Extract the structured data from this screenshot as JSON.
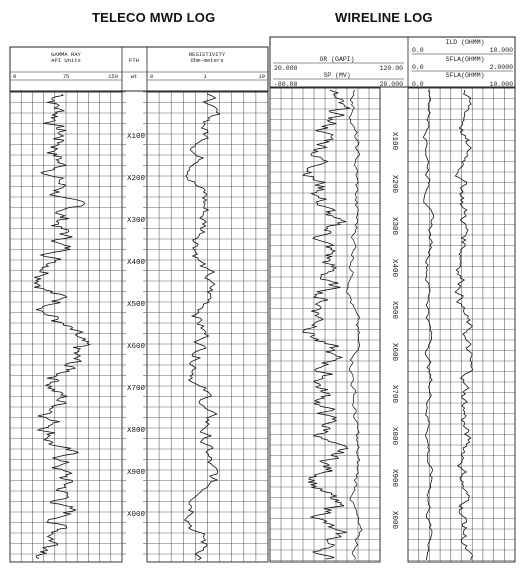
{
  "titles": {
    "teleco": "TELECO MWD LOG",
    "wireline": "WIRELINE LOG"
  },
  "teleco": {
    "gamma_header": "GAMMA RAY",
    "gamma_units": "API Units",
    "gamma_scale": [
      "0",
      "75",
      "150"
    ],
    "depth_header": "FTH",
    "depth_unit": "wt",
    "res_header": "RESISTIVITY",
    "res_units": "Ohm-meters",
    "res_scale": [
      "0",
      "1",
      "10"
    ],
    "depth_labels": [
      "X100",
      "X200",
      "X300",
      "X400",
      "X500",
      "X600",
      "X700",
      "X800",
      "X900",
      "X000"
    ]
  },
  "wireline": {
    "gr_header": "GR (GAPI)",
    "gr_scale": [
      "20.000",
      "120.00"
    ],
    "sp_header": "SP (MV)",
    "sp_scale": [
      "-80.00",
      "20.000"
    ],
    "ild_header": "ILD (OHMM)",
    "ild_scale": [
      "0.0",
      "10.000"
    ],
    "sfla_header_1": "SFLA(OHMM)",
    "sfla_scale_1": [
      "0.0",
      "2.0000"
    ],
    "sfla_header_2": "SFLA(OHMM)",
    "sfla_scale_2": [
      "0.0",
      "10.000"
    ],
    "depth_labels": [
      "X100",
      "X200",
      "X300",
      "X400",
      "X500",
      "X600",
      "X700",
      "X800",
      "X900",
      "X000"
    ]
  }
}
